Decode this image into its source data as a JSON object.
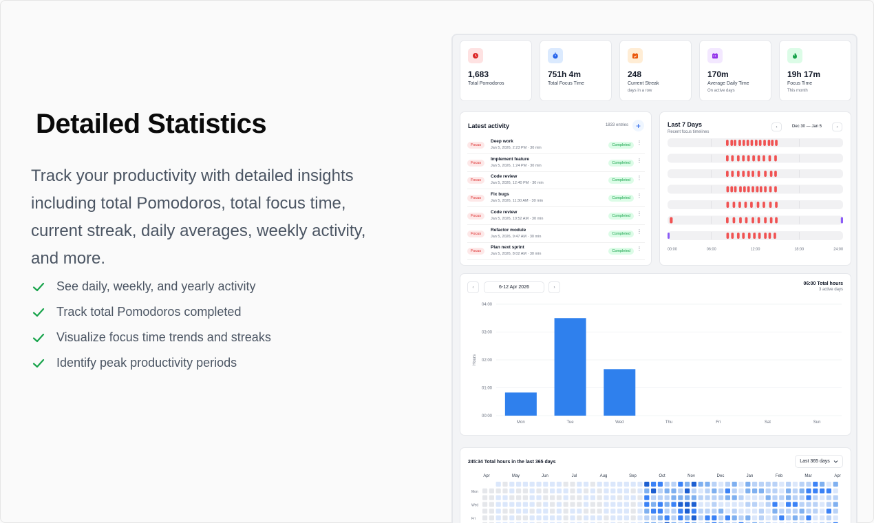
{
  "hero": {
    "title": "Detailed Statistics",
    "description": "Track your productivity with detailed insights including total Pomodoros, total focus time, current streak, daily averages, weekly activity, and more.",
    "features": [
      "See daily, weekly, and yearly activity",
      "Track total Pomodoros completed",
      "Visualize focus time trends and streaks",
      "Identify peak productivity periods"
    ],
    "check_color": "#16a34a"
  },
  "stats": [
    {
      "value": "1,683",
      "label": "Total Pomodoros",
      "sub": "",
      "icon": "clock-icon",
      "color": "#dc2626",
      "bg": "#fee2e2"
    },
    {
      "value": "751h 4m",
      "label": "Total Focus Time",
      "sub": "",
      "icon": "stopwatch-icon",
      "color": "#2563eb",
      "bg": "#dbeafe"
    },
    {
      "value": "248",
      "label": "Current Streak",
      "sub": "days in a row",
      "icon": "calendar-check-icon",
      "color": "#ea580c",
      "bg": "#ffedd5"
    },
    {
      "value": "170m",
      "label": "Average Daily Time",
      "sub": "On active days",
      "icon": "calendar-icon",
      "color": "#9333ea",
      "bg": "#f3e8ff"
    },
    {
      "value": "19h 17m",
      "label": "Focus Time",
      "sub": "This month",
      "icon": "flame-icon",
      "color": "#16a34a",
      "bg": "#dcfce7"
    }
  ],
  "activity": {
    "title": "Latest activity",
    "entries_count": "1833 entries",
    "items": [
      {
        "tag": "Focus",
        "name": "Deep work",
        "meta": "Jan 5, 2026, 2:23 PM · 30 min",
        "status": "Completed"
      },
      {
        "tag": "Focus",
        "name": "Implement feature",
        "meta": "Jan 5, 2026, 1:24 PM · 30 min",
        "status": "Completed"
      },
      {
        "tag": "Focus",
        "name": "Code review",
        "meta": "Jan 5, 2026, 12:40 PM · 30 min",
        "status": "Completed"
      },
      {
        "tag": "Focus",
        "name": "Fix bugs",
        "meta": "Jan 5, 2026, 11:30 AM · 30 min",
        "status": "Completed"
      },
      {
        "tag": "Focus",
        "name": "Code review",
        "meta": "Jan 5, 2026, 10:52 AM · 30 min",
        "status": "Completed"
      },
      {
        "tag": "Focus",
        "name": "Refactor module",
        "meta": "Jan 5, 2026, 9:47 AM · 30 min",
        "status": "Completed"
      },
      {
        "tag": "Focus",
        "name": "Plan next sprint",
        "meta": "Jan 5, 2026, 8:02 AM · 30 min",
        "status": "Completed"
      }
    ]
  },
  "last7": {
    "title": "Last 7 Days",
    "subtitle": "Recent focus timelines",
    "range": "Dec 30 — Jan 5",
    "prev": "‹",
    "next": "›",
    "hour_labels": [
      "00:00",
      "06:00",
      "12:00",
      "18:00",
      "24:00"
    ],
    "focus_color": "#f05252",
    "break_color": "#8b5cf6",
    "sessions": [
      [
        [
          8.0,
          8.35
        ],
        [
          8.6,
          8.95
        ],
        [
          9.05,
          9.4
        ],
        [
          9.7,
          10.05
        ],
        [
          10.25,
          10.6
        ],
        [
          10.8,
          11.15
        ],
        [
          11.35,
          11.7
        ],
        [
          11.95,
          12.3
        ],
        [
          12.5,
          12.85
        ],
        [
          13.1,
          13.45
        ],
        [
          13.7,
          14.05
        ],
        [
          14.15,
          14.5
        ],
        [
          14.7,
          15.05
        ]
      ],
      [
        [
          8.0,
          8.35
        ],
        [
          8.7,
          9.05
        ],
        [
          9.5,
          9.85
        ],
        [
          10.2,
          10.55
        ],
        [
          10.9,
          11.25
        ],
        [
          11.6,
          11.95
        ],
        [
          12.3,
          12.65
        ],
        [
          13.0,
          13.35
        ],
        [
          13.8,
          14.15
        ],
        [
          14.6,
          14.95
        ]
      ],
      [
        [
          8.0,
          8.35
        ],
        [
          8.7,
          9.05
        ],
        [
          9.5,
          9.85
        ],
        [
          10.2,
          10.55
        ],
        [
          10.9,
          11.25
        ],
        [
          11.5,
          11.85
        ],
        [
          12.3,
          12.65
        ],
        [
          13.2,
          13.55
        ],
        [
          14.0,
          14.35
        ],
        [
          14.6,
          14.95
        ]
      ],
      [
        [
          8.05,
          8.4
        ],
        [
          8.6,
          8.95
        ],
        [
          9.1,
          9.45
        ],
        [
          9.8,
          10.15
        ],
        [
          10.35,
          10.7
        ],
        [
          10.9,
          11.25
        ],
        [
          11.5,
          11.85
        ],
        [
          12.1,
          12.45
        ],
        [
          12.6,
          12.95
        ],
        [
          13.2,
          13.55
        ],
        [
          13.9,
          14.25
        ],
        [
          14.6,
          14.95
        ]
      ],
      [
        [
          8.05,
          8.4
        ],
        [
          8.9,
          9.25
        ],
        [
          9.7,
          10.05
        ],
        [
          10.5,
          10.85
        ],
        [
          11.3,
          11.65
        ],
        [
          12.2,
          12.55
        ],
        [
          13.0,
          13.35
        ],
        [
          13.9,
          14.25
        ],
        [
          14.7,
          15.05
        ]
      ],
      [
        [
          0.3,
          0.7
        ],
        [
          8.0,
          8.35
        ],
        [
          8.9,
          9.25
        ],
        [
          9.8,
          10.15
        ],
        [
          10.6,
          10.95
        ],
        [
          11.5,
          11.85
        ],
        [
          12.3,
          12.65
        ],
        [
          13.2,
          13.55
        ],
        [
          14.0,
          14.35
        ],
        [
          14.7,
          15.05
        ]
      ],
      [
        [
          8.05,
          8.4
        ],
        [
          8.7,
          9.05
        ],
        [
          9.5,
          9.85
        ],
        [
          10.2,
          10.55
        ],
        [
          11.0,
          11.35
        ],
        [
          11.7,
          12.05
        ],
        [
          12.4,
          12.75
        ],
        [
          13.2,
          13.55
        ],
        [
          13.8,
          14.15
        ],
        [
          14.5,
          14.85
        ]
      ]
    ],
    "breaks": [
      [],
      [],
      [],
      [],
      [],
      [
        [
          23.7,
          24.0
        ]
      ],
      [
        [
          0.0,
          0.2
        ]
      ]
    ]
  },
  "weekly": {
    "prev": "‹",
    "next": "›",
    "range": "6-12 Apr 2026",
    "total": "06:00 Total hours",
    "active": "3 active days"
  },
  "chart_data": {
    "type": "bar",
    "categories": [
      "Mon",
      "Tue",
      "Wed",
      "Thu",
      "Fri",
      "Sat",
      "Sun"
    ],
    "values": [
      0.83,
      3.5,
      1.67,
      0,
      0,
      0,
      0
    ],
    "ylabel": "Hours",
    "ylim": [
      0,
      4
    ],
    "yticks": [
      "00:00",
      "01:00",
      "02:00",
      "03:00",
      "04:00"
    ],
    "color": "#2f80ed",
    "grid": true
  },
  "heatmap": {
    "title": "245:34 Total hours in the last 365 days",
    "select": "Last 365 days",
    "months": [
      "Apr",
      "May",
      "Jun",
      "Jul",
      "Aug",
      "Sep",
      "Oct",
      "Nov",
      "Dec",
      "Jan",
      "Feb",
      "Mar",
      "Apr"
    ],
    "day_labels": [
      "Mon",
      "Wed",
      "Fri"
    ],
    "levels": [
      "#e5e7eb",
      "#dbe7fb",
      "#b9d2f7",
      "#7fb0f0",
      "#3b82f6",
      "#1d5fd1"
    ]
  }
}
